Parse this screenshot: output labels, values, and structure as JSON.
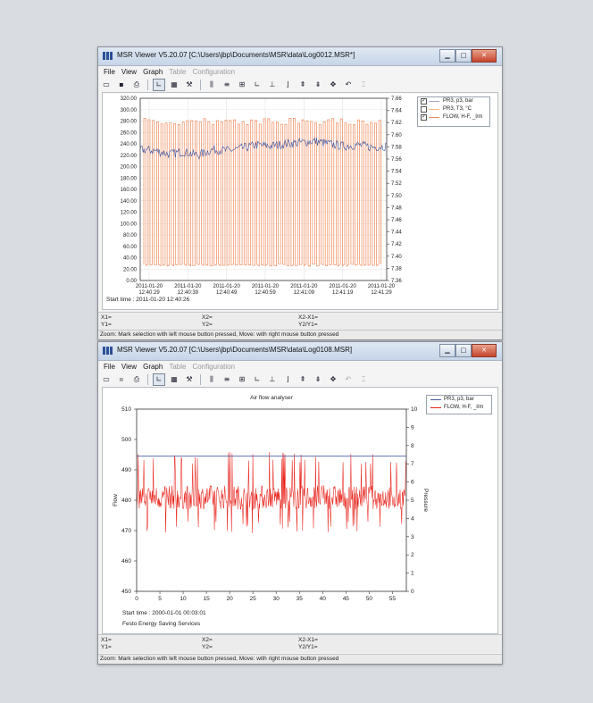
{
  "windows": [
    {
      "title": "MSR Viewer V5.20.07 [C:\\Users\\jbp\\Documents\\MSR\\data\\Log0012.MSR*]",
      "menu": [
        "File",
        "View",
        "Graph",
        "Table",
        "Configuration"
      ],
      "legend": [
        {
          "label": "PR3, p3, bar",
          "checked": true,
          "color": "#a9a9c8"
        },
        {
          "label": "PR3, T3, °C",
          "checked": false,
          "color": "#f5b98a"
        },
        {
          "label": "FLOW, H-F, _l/m",
          "checked": true,
          "color": "#f08a5a"
        }
      ],
      "start_time": "Start time : 2011-01-20 12:40:26",
      "info": {
        "x1": "X1=",
        "y1": "Y1=",
        "x2": "X2=",
        "y2": "Y2=",
        "dx": "X2-X1=",
        "dy": "Y2/Y1="
      },
      "status": "Zoom: Mark selection with left mouse button pressed, Move: with right mouse button pressed"
    },
    {
      "title": "MSR Viewer V5.20.07 [C:\\Users\\jbp\\Documents\\MSR\\data\\Log0108.MSR]",
      "menu": [
        "File",
        "View",
        "Graph",
        "Table",
        "Configuration"
      ],
      "chart_title": "Air flow analyser",
      "legend": [
        {
          "label": "PR3, p3, bar",
          "color": "#4a5aa8"
        },
        {
          "label": "FLOW, H-F, _l/m",
          "color": "#e8221a"
        }
      ],
      "start_time": "Start time : 2000-01-01 00:03:01",
      "footer": "Festo Energy Saving Services",
      "info": {
        "x1": "X1=",
        "y1": "Y1=",
        "x2": "X2=",
        "y2": "Y2=",
        "dx": "X2-X1=",
        "dy": "Y2/Y1="
      },
      "status": "Zoom: Mark selection with left mouse button pressed, Move: with right mouse button pressed"
    }
  ],
  "chart_data": [
    {
      "type": "line",
      "x_tick_labels": [
        [
          "2011-01-20",
          "12:40:29"
        ],
        [
          "2011-01-20",
          "12:40:39"
        ],
        [
          "2011-01-20",
          "12:40:49"
        ],
        [
          "2011-01-20",
          "12:40:59"
        ],
        [
          "2011-01-20",
          "12:41:09"
        ],
        [
          "2011-01-20",
          "12:41:19"
        ],
        [
          "2011-01-20",
          "12:41:29"
        ]
      ],
      "y_left_ticks": [
        "320.00",
        "300.00",
        "280.00",
        "260.00",
        "240.00",
        "220.00",
        "200.00",
        "180.00",
        "160.00",
        "140.00",
        "120.00",
        "100.00",
        "80.00",
        "60.00",
        "40.00",
        "20.00",
        "0.00"
      ],
      "y_right_ticks": [
        "7.66",
        "7.64",
        "7.62",
        "7.60",
        "7.58",
        "7.56",
        "7.54",
        "7.52",
        "7.50",
        "7.48",
        "7.46",
        "7.44",
        "7.42",
        "7.40",
        "7.38",
        "7.36"
      ],
      "ylim_left": [
        0,
        320
      ],
      "ylim_right": [
        7.36,
        7.66
      ],
      "series": [
        {
          "name": "FLOW, H-F, _l/m",
          "axis": "left",
          "low": 25,
          "high": 285,
          "pulses": 56,
          "color": "#f08a5a"
        },
        {
          "name": "PR3, p3, bar",
          "axis": "left",
          "values": [
            230,
            228,
            222,
            226,
            220,
            230,
            228,
            232,
            238,
            236,
            240,
            242,
            245,
            240,
            236,
            238,
            234,
            236
          ],
          "color": "#3c52a0"
        }
      ]
    },
    {
      "type": "line",
      "title": "Air flow analyser",
      "xlabel": "",
      "ylabel_left": "Flow",
      "ylabel_right": "Pressure",
      "x_ticks": [
        0,
        5,
        10,
        15,
        20,
        25,
        30,
        35,
        40,
        45,
        50,
        55
      ],
      "y_left_ticks": [
        450,
        460,
        470,
        480,
        490,
        500,
        510
      ],
      "y_right_ticks": [
        0,
        1,
        2,
        3,
        4,
        5,
        6,
        7,
        8,
        9,
        10
      ],
      "xlim": [
        0,
        58
      ],
      "ylim_left": [
        450,
        510
      ],
      "ylim_right": [
        0,
        10
      ],
      "series": [
        {
          "name": "PR3, p3, bar",
          "axis": "left",
          "values": [
            494.5,
            494.5
          ],
          "color": "#4a5aa8"
        },
        {
          "name": "FLOW, H-F, _l/m",
          "axis": "left",
          "base": 481,
          "spread": 4,
          "spike_max": 496,
          "spike_min": 469,
          "color": "#e8221a"
        }
      ]
    }
  ]
}
